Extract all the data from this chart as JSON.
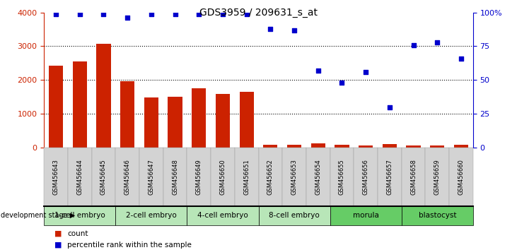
{
  "title": "GDS3959 / 209631_s_at",
  "samples": [
    "GSM456643",
    "GSM456644",
    "GSM456645",
    "GSM456646",
    "GSM456647",
    "GSM456648",
    "GSM456649",
    "GSM456650",
    "GSM456651",
    "GSM456652",
    "GSM456653",
    "GSM456654",
    "GSM456655",
    "GSM456656",
    "GSM456657",
    "GSM456658",
    "GSM456659",
    "GSM456660"
  ],
  "counts": [
    2420,
    2540,
    3080,
    1960,
    1480,
    1500,
    1760,
    1580,
    1660,
    90,
    90,
    120,
    90,
    60,
    100,
    60,
    70,
    80
  ],
  "percentiles": [
    99,
    99,
    99,
    96,
    99,
    99,
    99,
    99,
    99,
    88,
    87,
    57,
    48,
    56,
    30,
    76,
    78,
    66
  ],
  "stages": [
    {
      "label": "1-cell embryo",
      "start": 0,
      "end": 3
    },
    {
      "label": "2-cell embryo",
      "start": 3,
      "end": 6
    },
    {
      "label": "4-cell embryo",
      "start": 6,
      "end": 9
    },
    {
      "label": "8-cell embryo",
      "start": 9,
      "end": 12
    },
    {
      "label": "morula",
      "start": 12,
      "end": 15
    },
    {
      "label": "blastocyst",
      "start": 15,
      "end": 18
    }
  ],
  "bar_color": "#CC2200",
  "dot_color": "#0000CC",
  "left_ylim": [
    0,
    4000
  ],
  "right_ylim": [
    0,
    100
  ],
  "left_yticks": [
    0,
    1000,
    2000,
    3000,
    4000
  ],
  "right_yticks": [
    0,
    25,
    50,
    75,
    100
  ],
  "right_yticklabels": [
    "0",
    "25",
    "50",
    "75",
    "100%"
  ],
  "stage_light_color": "#b8e6b8",
  "stage_dark_color": "#66cc66",
  "sample_bg_color": "#d3d3d3",
  "background_color": "#ffffff",
  "development_stage_label": "development stage",
  "legend_count_label": "count",
  "legend_percentile_label": "percentile rank within the sample"
}
